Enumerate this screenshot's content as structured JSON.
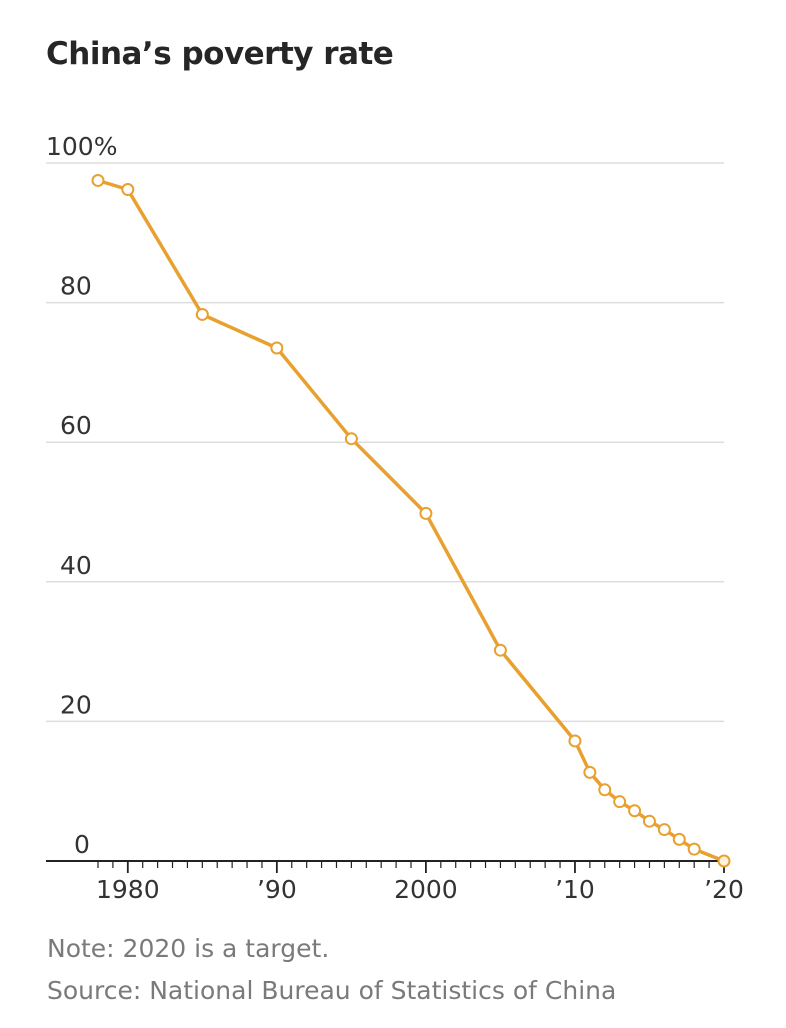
{
  "title": "China’s poverty rate",
  "note": "Note: 2020 is a target.",
  "source": "Source: National Bureau of Statistics of China",
  "colors": {
    "line": "#E8A02F",
    "marker_fill": "#ffffff",
    "grid": "#dddddd",
    "axis": "#222222",
    "tick_label": "#333333",
    "last_marker_fill": "#fff3dc"
  },
  "chart_data": {
    "type": "line",
    "title": "China’s poverty rate",
    "xlabel": "",
    "ylabel": "",
    "xlim": [
      1976,
      2020
    ],
    "ylim": [
      0,
      100
    ],
    "grid": true,
    "y_ticks": [
      {
        "value": 100,
        "label": "100%"
      },
      {
        "value": 80,
        "label": "80"
      },
      {
        "value": 60,
        "label": "60"
      },
      {
        "value": 40,
        "label": "40"
      },
      {
        "value": 20,
        "label": "20"
      },
      {
        "value": 0,
        "label": "0"
      }
    ],
    "x_ticks": [
      {
        "value": 1980,
        "label": "1980"
      },
      {
        "value": 1990,
        "label": "’90"
      },
      {
        "value": 2000,
        "label": "2000"
      },
      {
        "value": 2010,
        "label": "’10"
      },
      {
        "value": 2020,
        "label": "’20"
      }
    ],
    "series": [
      {
        "points": [
          {
            "x": 1978,
            "y": 97.5
          },
          {
            "x": 1980,
            "y": 96.2
          },
          {
            "x": 1985,
            "y": 78.3
          },
          {
            "x": 1990,
            "y": 73.5
          },
          {
            "x": 1995,
            "y": 60.5
          },
          {
            "x": 2000,
            "y": 49.8
          },
          {
            "x": 2005,
            "y": 30.2
          },
          {
            "x": 2010,
            "y": 17.2
          },
          {
            "x": 2011,
            "y": 12.7
          },
          {
            "x": 2012,
            "y": 10.2
          },
          {
            "x": 2013,
            "y": 8.5
          },
          {
            "x": 2014,
            "y": 7.2
          },
          {
            "x": 2015,
            "y": 5.7
          },
          {
            "x": 2016,
            "y": 4.5
          },
          {
            "x": 2017,
            "y": 3.1
          },
          {
            "x": 2018,
            "y": 1.7
          },
          {
            "x": 2020,
            "y": 0
          }
        ]
      }
    ]
  }
}
